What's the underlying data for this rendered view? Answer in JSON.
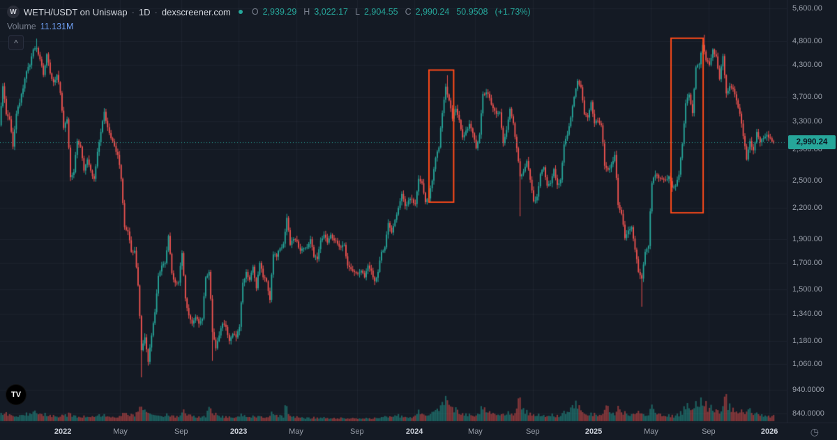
{
  "header": {
    "symbol_icon_letter": "W",
    "symbol_title": "WETH/USDT on Uniswap",
    "separator": "·",
    "interval": "1D",
    "source": "dexscreener.com",
    "ohlc": {
      "o_label": "O",
      "o_value": "2,939.29",
      "h_label": "H",
      "h_value": "3,022.17",
      "l_label": "L",
      "l_value": "2,904.55",
      "c_label": "C",
      "c_value": "2,990.24",
      "change": "50.9508",
      "change_pct": "(+1.73%)"
    },
    "volume_label": "Volume",
    "volume_value": "11.131M"
  },
  "icons": {
    "collapse_glyph": "^",
    "clock_glyph": "◷",
    "logo_glyph": "TV",
    "symbol_icon_name": "weth-token-icon",
    "status_dot_name": "market-status-dot"
  },
  "colors": {
    "background": "#141a24",
    "grid_line": "rgba(151,161,182,0.07)",
    "legend_text": "#d5d9e0",
    "muted_text": "#787f8d",
    "axis_text": "#9aa0ab",
    "year_text": "#cdd2db",
    "up": "#26a69a",
    "down": "#ef5350",
    "volume_value": "#6f9ff2",
    "badge_text": "#0d1420"
  },
  "chart_data": {
    "type": "candlestick",
    "symbol": "WETH/USDT",
    "venue": "Uniswap",
    "interval": "1D",
    "price_scale": "logarithmic",
    "points_note": "weekly close approximations read from chart",
    "start_date": "2021-08-23",
    "point_interval_days": 7,
    "first_open": 3160,
    "current_price": 2990.24,
    "current_price_label": "2,990.24",
    "up_color": "#26a69a",
    "down_color": "#ef5350",
    "rect_color": "#ff4a1a",
    "closes": [
      3240,
      3890,
      3410,
      3330,
      2930,
      3420,
      3600,
      3850,
      4170,
      4290,
      4620,
      4650,
      4410,
      4100,
      4520,
      4130,
      3960,
      4100,
      3770,
      3200,
      3330,
      2540,
      2600,
      3010,
      2930,
      2620,
      2760,
      2620,
      2520,
      2860,
      3140,
      3450,
      3210,
      3050,
      2940,
      2820,
      2520,
      2010,
      1970,
      1790,
      1800,
      1530,
      1130,
      1200,
      1070,
      1210,
      1350,
      1600,
      1680,
      1700,
      1930,
      1620,
      1550,
      1550,
      1780,
      1440,
      1330,
      1280,
      1320,
      1280,
      1310,
      1590,
      1630,
      1230,
      1140,
      1210,
      1280,
      1260,
      1180,
      1220,
      1200,
      1260,
      1550,
      1630,
      1570,
      1670,
      1510,
      1700,
      1590,
      1560,
      1430,
      1770,
      1750,
      1820,
      1860,
      2100,
      1850,
      1900,
      1880,
      1800,
      1820,
      1830,
      1900,
      1750,
      1730,
      1890,
      1940,
      1870,
      1940,
      1890,
      1860,
      1830,
      1850,
      1680,
      1650,
      1630,
      1620,
      1640,
      1590,
      1680,
      1640,
      1560,
      1630,
      1790,
      1830,
      2050,
      1960,
      2080,
      2200,
      2350,
      2220,
      2280,
      2290,
      2240,
      2520,
      2470,
      2260,
      2300,
      2500,
      2780,
      2920,
      3430,
      3880,
      3640,
      3340,
      3500,
      3320,
      3060,
      3160,
      3260,
      3120,
      2910,
      3100,
      3750,
      3780,
      3680,
      3510,
      3420,
      3440,
      2980,
      3170,
      3500,
      3270,
      2910,
      2550,
      2610,
      2740,
      2510,
      2270,
      2320,
      2580,
      2660,
      2440,
      2470,
      2640,
      2450,
      2510,
      2960,
      3100,
      3360,
      3700,
      3990,
      3870,
      3410,
      3360,
      3610,
      3270,
      3310,
      3240,
      2680,
      2630,
      2700,
      2820,
      2230,
      2140,
      1910,
      1980,
      2010,
      1810,
      1630,
      1580,
      1790,
      1840,
      2470,
      2570,
      2530,
      2520,
      2510,
      2550,
      2420,
      2440,
      2570,
      2970,
      3590,
      3740,
      3430,
      4250,
      4310,
      4720,
      4390,
      4300,
      4620,
      4470,
      4020,
      4480,
      3760,
      3890,
      3840,
      3640,
      3420,
      3080,
      2760,
      3010,
      2880,
      3140,
      2990,
      3050,
      3100,
      3050,
      2990.24
    ],
    "volumes_m": [
      10,
      14,
      16,
      12,
      11,
      9,
      10,
      12,
      14,
      13,
      16,
      18,
      14,
      12,
      13,
      11,
      10,
      9,
      8,
      12,
      11,
      16,
      10,
      9,
      8,
      9,
      8,
      8,
      9,
      10,
      11,
      12,
      9,
      8,
      8,
      7,
      10,
      16,
      14,
      12,
      11,
      18,
      28,
      22,
      17,
      14,
      12,
      11,
      10,
      9,
      13,
      10,
      9,
      9,
      14,
      19,
      12,
      11,
      9,
      8,
      8,
      9,
      24,
      20,
      14,
      11,
      9,
      8,
      8,
      7,
      7,
      9,
      12,
      10,
      8,
      9,
      8,
      10,
      8,
      7,
      9,
      16,
      12,
      10,
      9,
      30,
      12,
      9,
      8,
      7,
      7,
      6,
      6,
      7,
      6,
      6,
      7,
      6,
      5,
      6,
      5,
      6,
      6,
      5,
      5,
      6,
      5,
      5,
      5,
      6,
      5,
      6,
      6,
      7,
      9,
      8,
      9,
      10,
      12,
      9,
      8,
      7,
      7,
      10,
      18,
      14,
      12,
      11,
      16,
      20,
      22,
      34,
      40,
      36,
      28,
      22,
      18,
      14,
      13,
      12,
      11,
      10,
      14,
      26,
      22,
      18,
      15,
      13,
      12,
      14,
      12,
      16,
      13,
      20,
      45,
      24,
      18,
      14,
      12,
      10,
      12,
      11,
      9,
      10,
      12,
      10,
      9,
      18,
      16,
      22,
      28,
      32,
      26,
      16,
      12,
      14,
      13,
      11,
      12,
      18,
      30,
      16,
      14,
      24,
      20,
      16,
      13,
      12,
      14,
      18,
      15,
      12,
      11,
      28,
      20,
      14,
      12,
      10,
      11,
      10,
      9,
      12,
      16,
      26,
      30,
      22,
      32,
      28,
      38,
      34,
      22,
      26,
      20,
      18,
      24,
      50,
      28,
      22,
      18,
      16,
      20,
      16,
      24,
      14,
      16,
      12,
      11,
      10,
      9,
      11
    ],
    "wick_overrides": [
      {
        "week": 11,
        "high": 4860
      },
      {
        "week": 42,
        "low": 995
      },
      {
        "week": 63,
        "low": 1075
      },
      {
        "week": 85,
        "high": 2140
      },
      {
        "week": 133,
        "high": 4095
      },
      {
        "week": 154,
        "low": 2115
      },
      {
        "week": 190,
        "low": 1385
      },
      {
        "week": 209,
        "high": 4950
      }
    ],
    "price_axis": [
      {
        "label": "5,600.00",
        "value": 5600
      },
      {
        "label": "4,800.00",
        "value": 4800
      },
      {
        "label": "4,300.00",
        "value": 4300
      },
      {
        "label": "3,700.00",
        "value": 3700
      },
      {
        "label": "3,300.00",
        "value": 3300
      },
      {
        "label": "2,900.00",
        "value": 2900
      },
      {
        "label": "2,500.00",
        "value": 2500
      },
      {
        "label": "2,200.00",
        "value": 2200
      },
      {
        "label": "1,900.00",
        "value": 1900
      },
      {
        "label": "1,700.00",
        "value": 1700
      },
      {
        "label": "1,500.00",
        "value": 1500
      },
      {
        "label": "1,340.00",
        "value": 1340
      },
      {
        "label": "1,180.00",
        "value": 1180
      },
      {
        "label": "1,060.00",
        "value": 1060
      },
      {
        "label": "940.0000",
        "value": 940
      },
      {
        "label": "840.0000",
        "value": 840
      }
    ],
    "time_axis": [
      {
        "label": "2022",
        "week": 19,
        "major": true
      },
      {
        "label": "May",
        "week": 36
      },
      {
        "label": "Sep",
        "week": 54
      },
      {
        "label": "2023",
        "week": 71,
        "major": true
      },
      {
        "label": "May",
        "week": 88
      },
      {
        "label": "Sep",
        "week": 106
      },
      {
        "label": "2024",
        "week": 123,
        "major": true
      },
      {
        "label": "May",
        "week": 141
      },
      {
        "label": "Sep",
        "week": 158
      },
      {
        "label": "2025",
        "week": 176,
        "major": true
      },
      {
        "label": "May",
        "week": 193
      },
      {
        "label": "Sep",
        "week": 210
      },
      {
        "label": "2026",
        "week": 228,
        "major": true
      }
    ],
    "rectangles": [
      {
        "week_start": 127.3,
        "week_end": 134.6,
        "price_low": 2260,
        "price_high": 4195
      },
      {
        "week_start": 198.9,
        "week_end": 208.4,
        "price_low": 2150,
        "price_high": 4870
      }
    ]
  }
}
